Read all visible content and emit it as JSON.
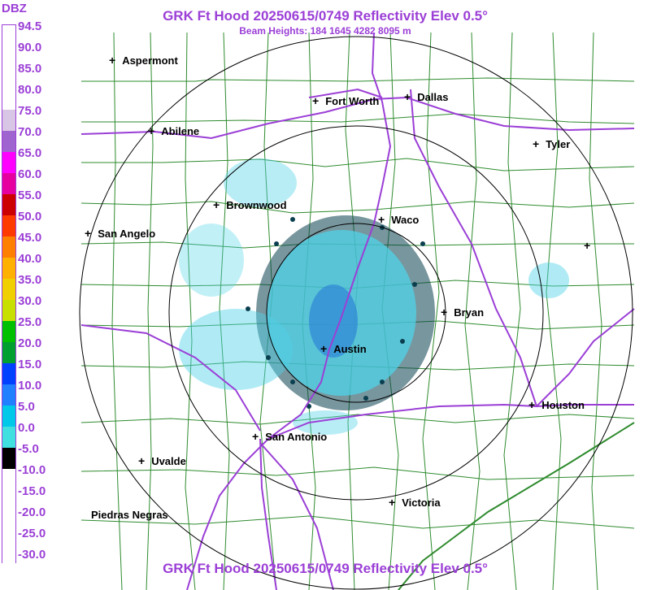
{
  "header": {
    "title": "GRK Ft Hood 20250615/0749 Reflectivity Elev 0.5°",
    "subtitle": "Beam Heights: 184 1645 4282 8095 m"
  },
  "footer": {
    "title": "GRK Ft Hood 20250615/0749 Reflectivity Elev 0.5°"
  },
  "legend": {
    "title": "DBZ",
    "ticks": [
      "94.5",
      "90.0",
      "85.0",
      "80.0",
      "75.0",
      "70.0",
      "65.0",
      "60.0",
      "55.0",
      "50.0",
      "45.0",
      "40.0",
      "35.0",
      "30.0",
      "25.0",
      "20.0",
      "15.0",
      "10.0",
      "5.0",
      "0.0",
      "-5.0",
      "-10.0",
      "-15.0",
      "-20.0",
      "-25.0",
      "-30.0"
    ],
    "colors": [
      "#ffffff",
      "#ffffff",
      "#ffffff",
      "#ffffff",
      "#d9c6e6",
      "#a064d0",
      "#ff00ff",
      "#e600a0",
      "#cc0000",
      "#ff3a00",
      "#ff8000",
      "#ffb000",
      "#f0d000",
      "#c8e000",
      "#00c000",
      "#00a030",
      "#0040ff",
      "#2080ff",
      "#00c8e8",
      "#40e0e0",
      "#000000",
      "#ffffff",
      "#ffffff",
      "#ffffff",
      "#ffffff",
      "#ffffff"
    ]
  },
  "map": {
    "cities": [
      {
        "name": "Aspermont"
      },
      {
        "name": "Fort Worth"
      },
      {
        "name": "Dallas"
      },
      {
        "name": "Abilene"
      },
      {
        "name": "Tyler"
      },
      {
        "name": "Brownwood"
      },
      {
        "name": "Waco"
      },
      {
        "name": "San Angelo"
      },
      {
        "name": "Bryan"
      },
      {
        "name": "Austin"
      },
      {
        "name": "Houston"
      },
      {
        "name": "San Antonio"
      },
      {
        "name": "Uvalde"
      },
      {
        "name": "Victoria"
      },
      {
        "name": "Piedras Negras"
      },
      {
        "name": ""
      }
    ],
    "colors": {
      "county_lines": "#2e8b2e",
      "highways": "#9b3fd6",
      "range_rings": "#000000",
      "echo_light": "#4fd3e8",
      "echo_mid": "#2f86d6",
      "echo_dark": "#0a3f4f"
    }
  }
}
